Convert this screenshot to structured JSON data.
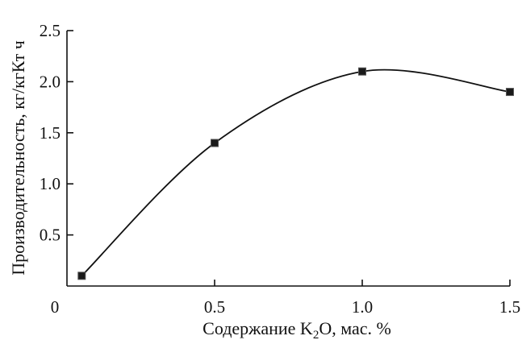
{
  "chart_data": {
    "type": "line",
    "xlabel_main": "Содержание K",
    "xlabel_sub": "2",
    "xlabel_rest": "O, мас. %",
    "ylabel": "Производительность, кг/кгКт ч",
    "x_ticks": [
      "0",
      "0.5",
      "1.0",
      "1.5"
    ],
    "y_ticks": [
      "0.5",
      "1.0",
      "1.5",
      "2.0",
      "2.5"
    ],
    "xlim": [
      0,
      1.5
    ],
    "ylim": [
      0,
      2.5
    ],
    "grid": false,
    "series": [
      {
        "points": [
          {
            "x": 0.05,
            "y": 0.1
          },
          {
            "x": 0.5,
            "y": 1.4
          },
          {
            "x": 1.0,
            "y": 2.1
          },
          {
            "x": 1.5,
            "y": 1.9
          }
        ],
        "smooth": true,
        "marker": "square"
      }
    ]
  }
}
